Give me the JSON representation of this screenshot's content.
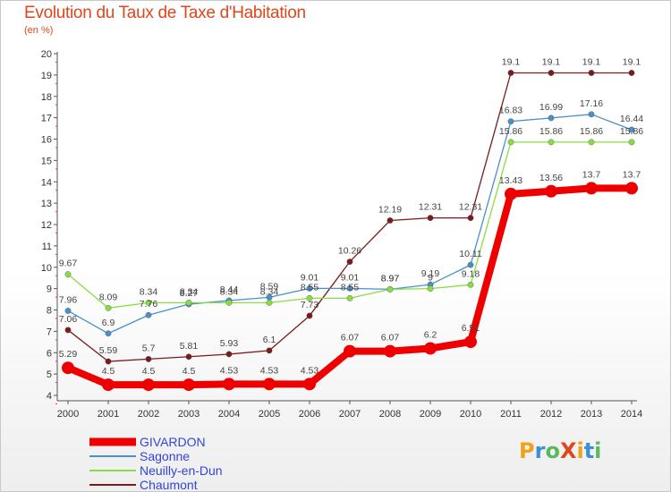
{
  "title": "Evolution du Taux de Taxe d'Habitation",
  "unit": "(en %)",
  "brand": {
    "text": "ProXiti",
    "letters": [
      {
        "ch": "P",
        "color": "#f2a21a"
      },
      {
        "ch": "r",
        "color": "#3a8fd8"
      },
      {
        "ch": "o",
        "color": "#5cb85c"
      },
      {
        "ch": "X",
        "color": "#e0461c"
      },
      {
        "ch": "i",
        "color": "#f2a21a"
      },
      {
        "ch": "t",
        "color": "#3a8fd8"
      },
      {
        "ch": "i",
        "color": "#5cb85c"
      }
    ]
  },
  "chart_data": {
    "type": "line",
    "title": "Evolution du Taux de Taxe d'Habitation",
    "ylabel": "(en %)",
    "xlabel": "",
    "x": [
      "2000",
      "2001",
      "2002",
      "2003",
      "2004",
      "2005",
      "2006",
      "2007",
      "2008",
      "2009",
      "2010",
      "2011",
      "2012",
      "2013",
      "2014"
    ],
    "ylim": [
      4,
      20
    ],
    "yticks": [
      "4",
      "5",
      "6",
      "7",
      "8",
      "9",
      "10",
      "11",
      "12",
      "13",
      "14",
      "15",
      "16",
      "17",
      "18",
      "19",
      "20"
    ],
    "grid": false,
    "legend_position": "bottom-left",
    "series": [
      {
        "name": "GIVARDON",
        "color": "#ee0000",
        "values": [
          5.29,
          4.5,
          4.5,
          4.5,
          4.53,
          4.53,
          4.53,
          6.07,
          6.07,
          6.2,
          6.51,
          13.43,
          13.56,
          13.7,
          13.7
        ],
        "labels": [
          "5.29",
          "4.5",
          "4.5",
          "4.5",
          "4.53",
          "4.53",
          "4.53",
          "6.07",
          "6.07",
          "6.2",
          "6.51",
          "13.43",
          "13.56",
          "13.7",
          "13.7"
        ]
      },
      {
        "name": "Sagonne",
        "color": "#4a90c8",
        "values": [
          7.96,
          6.9,
          7.76,
          8.27,
          8.44,
          8.59,
          9.01,
          9.01,
          8.97,
          9.19,
          10.11,
          16.83,
          16.99,
          17.16,
          16.44
        ],
        "labels": [
          "7.96",
          "6.9",
          "7.76",
          "8.27",
          "8.44",
          "8.59",
          "9.01",
          "9.01",
          "8.97",
          "9.19",
          "10.11",
          "16.83",
          "16.99",
          "17.16",
          "16.44"
        ]
      },
      {
        "name": "Neuilly-en-Dun",
        "color": "#88dd44",
        "values": [
          9.67,
          8.09,
          8.34,
          8.34,
          8.34,
          8.34,
          8.55,
          8.55,
          8.97,
          9.0,
          9.18,
          15.86,
          15.86,
          15.86,
          15.86
        ],
        "labels": [
          "9.67",
          "8.09",
          "8.34",
          "8.34",
          "8.34",
          "8.34",
          "8.55",
          "8.55",
          "8.97",
          "9",
          "9.18",
          "15.86",
          "15.86",
          "15.86",
          "15.86"
        ]
      },
      {
        "name": "Chaumont",
        "color": "#7a1a1a",
        "values": [
          7.06,
          5.59,
          5.7,
          5.81,
          5.93,
          6.1,
          7.73,
          10.26,
          12.19,
          12.31,
          12.31,
          19.1,
          19.1,
          19.1,
          19.1
        ],
        "labels": [
          "7.06",
          "5.59",
          "5.7",
          "5.81",
          "5.93",
          "6.1",
          "7.73",
          "10.26",
          "12.19",
          "12.31",
          "12.31",
          "19.1",
          "19.1",
          "19.1",
          "19.1"
        ]
      }
    ]
  }
}
